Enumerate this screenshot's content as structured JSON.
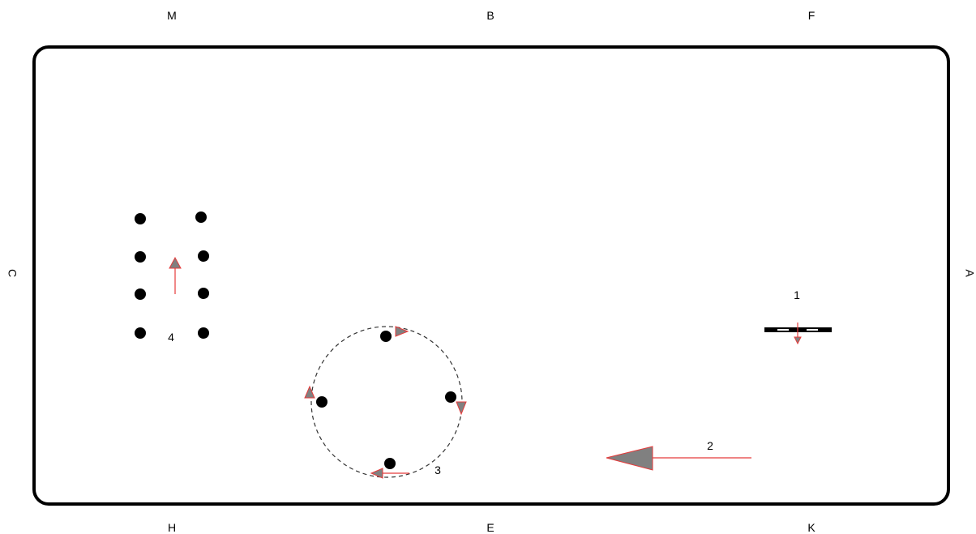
{
  "arena_letters": {
    "top": [
      "M",
      "B",
      "F"
    ],
    "bottom": [
      "H",
      "E",
      "K"
    ],
    "left": "C",
    "right": "A"
  },
  "figures": [
    {
      "number": "1",
      "kind": "pole-bar"
    },
    {
      "number": "2",
      "kind": "long-arrow-left"
    },
    {
      "number": "3",
      "kind": "circle-of-four"
    },
    {
      "number": "4",
      "kind": "two-columns-of-four"
    }
  ],
  "colors": {
    "arena_border": "#000000",
    "marker": "#000000",
    "arrow_stroke": "#e53b3b",
    "arrow_fill": "#808080",
    "circle_path": "#333333",
    "background": "#ffffff"
  }
}
